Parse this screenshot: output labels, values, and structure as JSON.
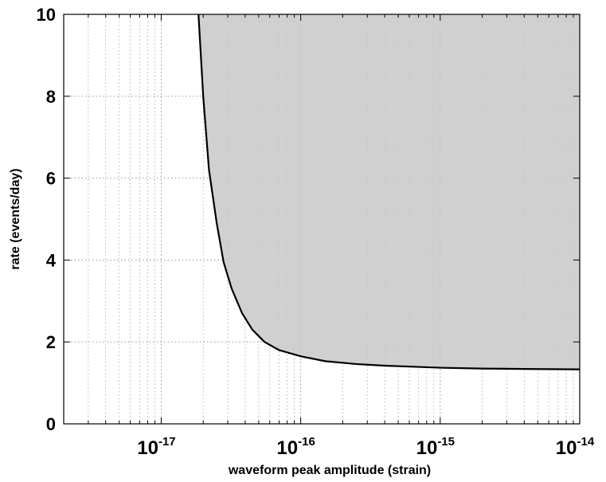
{
  "chart_data": {
    "type": "area",
    "xscale": "log",
    "xlim": [
      2e-18,
      1e-14
    ],
    "ylim": [
      0,
      10
    ],
    "xlabel": "waveform peak amplitude (strain)",
    "ylabel": "rate (events/day)",
    "x_ticks": [
      {
        "value": 1e-17,
        "base": "10",
        "exp": "-17"
      },
      {
        "value": 1e-16,
        "base": "10",
        "exp": "-16"
      },
      {
        "value": 1e-15,
        "base": "10",
        "exp": "-15"
      },
      {
        "value": 1e-14,
        "base": "10",
        "exp": "-14"
      }
    ],
    "y_ticks": [
      {
        "value": 0,
        "label": "0"
      },
      {
        "value": 2,
        "label": "2"
      },
      {
        "value": 4,
        "label": "4"
      },
      {
        "value": 6,
        "label": "6"
      },
      {
        "value": 8,
        "label": "8"
      },
      {
        "value": 10,
        "label": "10"
      }
    ],
    "grid": true,
    "grid_style": "dotted",
    "fill_region": "above-curve",
    "series": [
      {
        "x": [
          1.85e-17,
          2e-17,
          2.2e-17,
          2.5e-17,
          2.8e-17,
          3.2e-17,
          3.8e-17,
          4.5e-17,
          5.5e-17,
          7e-17,
          1e-16,
          1.5e-16,
          2.5e-16,
          4e-16,
          7e-16,
          1e-15,
          2e-15,
          4e-15,
          1e-14
        ],
        "y": [
          10.0,
          8.0,
          6.2,
          4.9,
          3.95,
          3.3,
          2.7,
          2.3,
          2.0,
          1.8,
          1.65,
          1.53,
          1.46,
          1.42,
          1.39,
          1.37,
          1.35,
          1.34,
          1.33
        ]
      }
    ],
    "colors": {
      "fill": "#d0d0d0",
      "line": "#000000",
      "grid": "#8a8a8a",
      "axes": "#000000"
    }
  }
}
